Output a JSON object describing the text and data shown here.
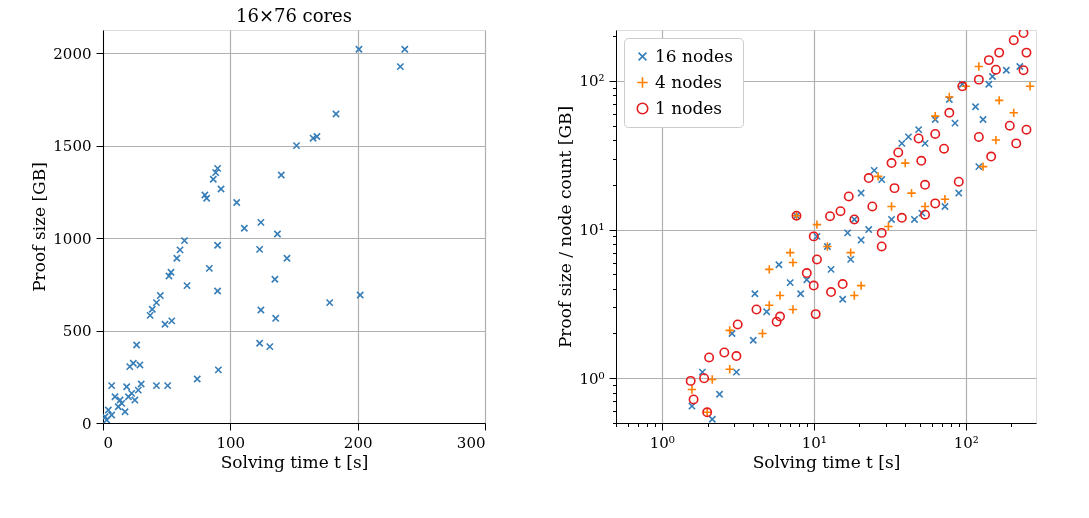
{
  "chart_data": [
    {
      "type": "scatter",
      "title": "16×76 cores",
      "xlabel": "Solving time t [s]",
      "ylabel": "Proof size [GB]",
      "xlim": [
        0,
        300
      ],
      "ylim": [
        0,
        2125
      ],
      "xticks": [
        0,
        100,
        200,
        300
      ],
      "yticks": [
        0,
        500,
        1000,
        1500,
        2000
      ],
      "grid": true,
      "marker": "x",
      "series": [
        {
          "color": "#377eb8",
          "x": [
            201,
            237,
            233.5,
            183,
            152,
            165,
            168,
            140,
            90,
            88.5,
            86.6,
            92.7,
            81.4,
            80,
            105,
            111,
            124,
            137,
            64,
            60.5,
            58,
            90,
            123,
            144.5,
            53.4,
            51.8,
            83.5,
            66,
            135,
            90,
            45,
            42,
            38.7,
            37,
            54,
            48.7,
            124,
            135.6,
            178,
            202,
            123,
            131,
            26.4,
            21,
            23.8,
            29,
            74,
            90.6,
            50.8,
            42,
            30,
            6.8,
            9.4,
            14.7,
            20,
            25,
            4.2,
            1.6,
            12,
            17.3,
            6.8,
            2.9,
            22.5,
            27.7,
            18.6,
            13.4
          ],
          "values": [
            2021,
            2021,
            1927,
            1671,
            1500,
            1540,
            1549,
            1341,
            1377,
            1354,
            1318,
            1265,
            1215,
            1233,
            1192,
            1053,
            1085,
            1022,
            986,
            936,
            891,
            961,
            939,
            891,
            815,
            795,
            836,
            743,
            777,
            714,
            689,
            651,
            615,
            582,
            552,
            534,
            611,
            566,
            651,
            692,
            431,
            413,
            422,
            305,
            323,
            314,
            238,
            287,
            202,
            202,
            211,
            202,
            142,
            106,
            142,
            124,
            70,
            34,
            88,
            61,
            43,
            16,
            160,
            178,
            196,
            124
          ]
        }
      ]
    },
    {
      "type": "scatter",
      "xlabel": "Solving time t [s]",
      "ylabel": "Proof size / node count [GB]",
      "log": "xy",
      "xlim": [
        0.5,
        290
      ],
      "ylim": [
        0.5,
        220
      ],
      "grid": true,
      "legend": "top left",
      "xticks": [
        {
          "value": 0.5,
          "label": null
        },
        {
          "value": 0.6,
          "label": null
        },
        {
          "value": 0.7,
          "label": null
        },
        {
          "value": 0.8,
          "label": null
        },
        {
          "value": 0.9,
          "label": null
        },
        {
          "value": 1,
          "label": "10⁰"
        },
        {
          "value": 2,
          "label": null
        },
        {
          "value": 3,
          "label": null
        },
        {
          "value": 4,
          "label": null
        },
        {
          "value": 5,
          "label": null
        },
        {
          "value": 6,
          "label": null
        },
        {
          "value": 7,
          "label": null
        },
        {
          "value": 8,
          "label": null
        },
        {
          "value": 9,
          "label": null
        },
        {
          "value": 10,
          "label": "10¹"
        },
        {
          "value": 20,
          "label": null
        },
        {
          "value": 30,
          "label": null
        },
        {
          "value": 40,
          "label": null
        },
        {
          "value": 50,
          "label": null
        },
        {
          "value": 60,
          "label": null
        },
        {
          "value": 70,
          "label": null
        },
        {
          "value": 80,
          "label": null
        },
        {
          "value": 90,
          "label": null
        },
        {
          "value": 100,
          "label": "10²"
        },
        {
          "value": 200,
          "label": null
        }
      ],
      "yticks": [
        {
          "value": 0.5,
          "label": null
        },
        {
          "value": 0.6,
          "label": null
        },
        {
          "value": 0.7,
          "label": null
        },
        {
          "value": 0.8,
          "label": null
        },
        {
          "value": 0.9,
          "label": null
        },
        {
          "value": 1,
          "label": "10⁰"
        },
        {
          "value": 2,
          "label": null
        },
        {
          "value": 3,
          "label": null
        },
        {
          "value": 4,
          "label": null
        },
        {
          "value": 5,
          "label": null
        },
        {
          "value": 6,
          "label": null
        },
        {
          "value": 7,
          "label": null
        },
        {
          "value": 8,
          "label": null
        },
        {
          "value": 9,
          "label": null
        },
        {
          "value": 10,
          "label": "10¹"
        },
        {
          "value": 20,
          "label": null
        },
        {
          "value": 30,
          "label": null
        },
        {
          "value": 40,
          "label": null
        },
        {
          "value": 50,
          "label": null
        },
        {
          "value": 60,
          "label": null
        },
        {
          "value": 70,
          "label": null
        },
        {
          "value": 80,
          "label": null
        },
        {
          "value": 90,
          "label": null
        },
        {
          "value": 100,
          "label": "10²"
        },
        {
          "value": 200,
          "label": null
        }
      ],
      "series": [
        {
          "name": "16 nodes",
          "color": "#377eb8",
          "marker": "x",
          "x": [
            1.58,
            2.15,
            2.4,
            1.85,
            3.1,
            2.9,
            4.0,
            4.1,
            4.9,
            5.9,
            7.0,
            8.2,
            7.7,
            10.5,
            13,
            15.5,
            17.5,
            20.5,
            23,
            20.5,
            25,
            28,
            32.5,
            38,
            42,
            49,
            54,
            63,
            78,
            85,
            95,
            116,
            130,
            142,
            122,
            150,
            185,
            227,
            90,
            73,
            46,
            51.5,
            9,
            12.3,
            18.5,
            16.7
          ],
          "values": [
            0.65,
            0.53,
            0.78,
            1.1,
            1.1,
            2.0,
            1.8,
            3.7,
            2.8,
            5.8,
            4.4,
            3.7,
            12.4,
            9.0,
            5.4,
            3.4,
            6.3,
            8.5,
            10,
            17.6,
            25,
            21.7,
            11.7,
            38,
            42,
            47,
            38,
            55,
            75,
            52,
            95,
            67,
            55,
            95,
            26.5,
            107,
            118,
            125,
            17.6,
            14.3,
            11.7,
            12.9,
            4.6,
            7.7,
            11.7,
            9.5
          ]
        },
        {
          "name": "4 nodes",
          "color": "#ff7f00",
          "marker": "cross",
          "x": [
            1.58,
            1.99,
            2.15,
            2.8,
            2.8,
            4.6,
            5.1,
            6.0,
            7.3,
            5.1,
            7.0,
            7.3,
            7.7,
            10.5,
            12.3,
            17.5,
            20.5,
            18.5,
            26.5,
            32.5,
            44,
            63,
            78,
            100,
            122,
            166,
            207,
            265,
            130,
            158,
            40,
            54,
            73,
            31
          ],
          "values": [
            0.84,
            0.59,
            0.98,
            1.15,
            2.1,
            2.0,
            3.1,
            3.6,
            2.9,
            5.4,
            7.0,
            6.0,
            12.4,
            10.8,
            7.7,
            7.0,
            4.2,
            3.6,
            22.8,
            14.3,
            17.6,
            58,
            78,
            92,
            125,
            74,
            61,
            92,
            26.5,
            40,
            28,
            14.3,
            16,
            10.5
          ]
        },
        {
          "name": "1 nodes",
          "color": "#e41a1c",
          "marker": "circle",
          "x": [
            1.55,
            1.62,
            1.99,
            1.9,
            2.05,
            2.58,
            3.1,
            3.16,
            4.2,
            5.7,
            6.0,
            7.7,
            9,
            10,
            10.3,
            10.5,
            13,
            15.5,
            10,
            12.8,
            15,
            17,
            18.5,
            23,
            24.3,
            28,
            28,
            34,
            38,
            54,
            54,
            63,
            90,
            32.5,
            36,
            49,
            51,
            72,
            63,
            78,
            95,
            122,
            142,
            166,
            207,
            240,
            158,
            240,
            195,
            215,
            251,
            147,
            122,
            251
          ],
          "values": [
            0.96,
            0.72,
            0.59,
            1.0,
            1.38,
            1.49,
            1.41,
            2.3,
            2.9,
            2.4,
            2.6,
            12.4,
            5.1,
            4.2,
            2.7,
            6.3,
            3.8,
            4.3,
            9.0,
            12.3,
            13.3,
            16.7,
            11.7,
            22.2,
            14.3,
            9.5,
            7.7,
            19,
            12,
            12.6,
            20,
            15,
            21,
            28,
            33,
            41,
            29,
            35,
            44,
            61,
            92,
            102,
            138,
            155,
            188,
            210,
            119,
            118,
            50,
            38,
            47,
            31,
            42,
            155
          ]
        }
      ]
    }
  ]
}
